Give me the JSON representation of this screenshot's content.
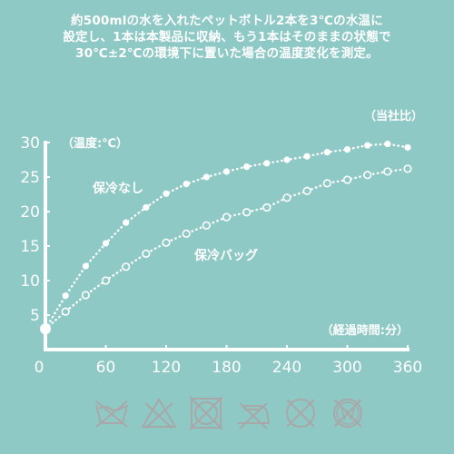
{
  "description": [
    "約500mlの水を入れたペットボトル2本を3℃の水温に",
    "設定し、1本は本製品に収納、もう1本はそのままの状態で",
    "30℃±2℃の環境下に置いた場合の温度変化を測定。"
  ],
  "source_note": "（当社比）",
  "chart_data": {
    "type": "line",
    "ylabel": "（温度:℃）",
    "xlabel": "（経過時間:分）",
    "xlim": [
      0,
      360
    ],
    "ylim": [
      0,
      30
    ],
    "x_ticks": [
      0,
      60,
      120,
      180,
      240,
      300,
      360
    ],
    "y_ticks": [
      5,
      10,
      15,
      20,
      25,
      30
    ],
    "grid": false,
    "x": [
      0,
      20,
      40,
      60,
      80,
      100,
      120,
      140,
      160,
      180,
      200,
      220,
      240,
      260,
      280,
      300,
      320,
      340,
      360
    ],
    "series": [
      {
        "name": "保冷なし",
        "marker": "filled",
        "values": [
          3,
          7.8,
          12.1,
          15.4,
          18.4,
          20.6,
          22.6,
          24.0,
          25.0,
          25.8,
          26.5,
          27.0,
          27.5,
          28.0,
          28.6,
          29.0,
          29.6,
          29.8,
          29.3
        ]
      },
      {
        "name": "保冷バッグ",
        "marker": "hollow",
        "values": [
          3,
          5.5,
          7.9,
          10.0,
          12.0,
          13.9,
          15.5,
          16.8,
          18.0,
          19.2,
          19.9,
          20.6,
          22.0,
          23.0,
          24.1,
          24.6,
          25.3,
          25.8,
          26.2
        ]
      }
    ]
  },
  "care_icons": [
    "no-washing-icon",
    "no-bleach-icon",
    "no-tumble-dry-icon",
    "no-ironing-icon",
    "no-dry-clean-icon",
    "no-wet-clean-icon"
  ],
  "colors": {
    "background": "#8ec9c6",
    "foreground": "#ffffff",
    "icon": "#a8a8a8"
  }
}
